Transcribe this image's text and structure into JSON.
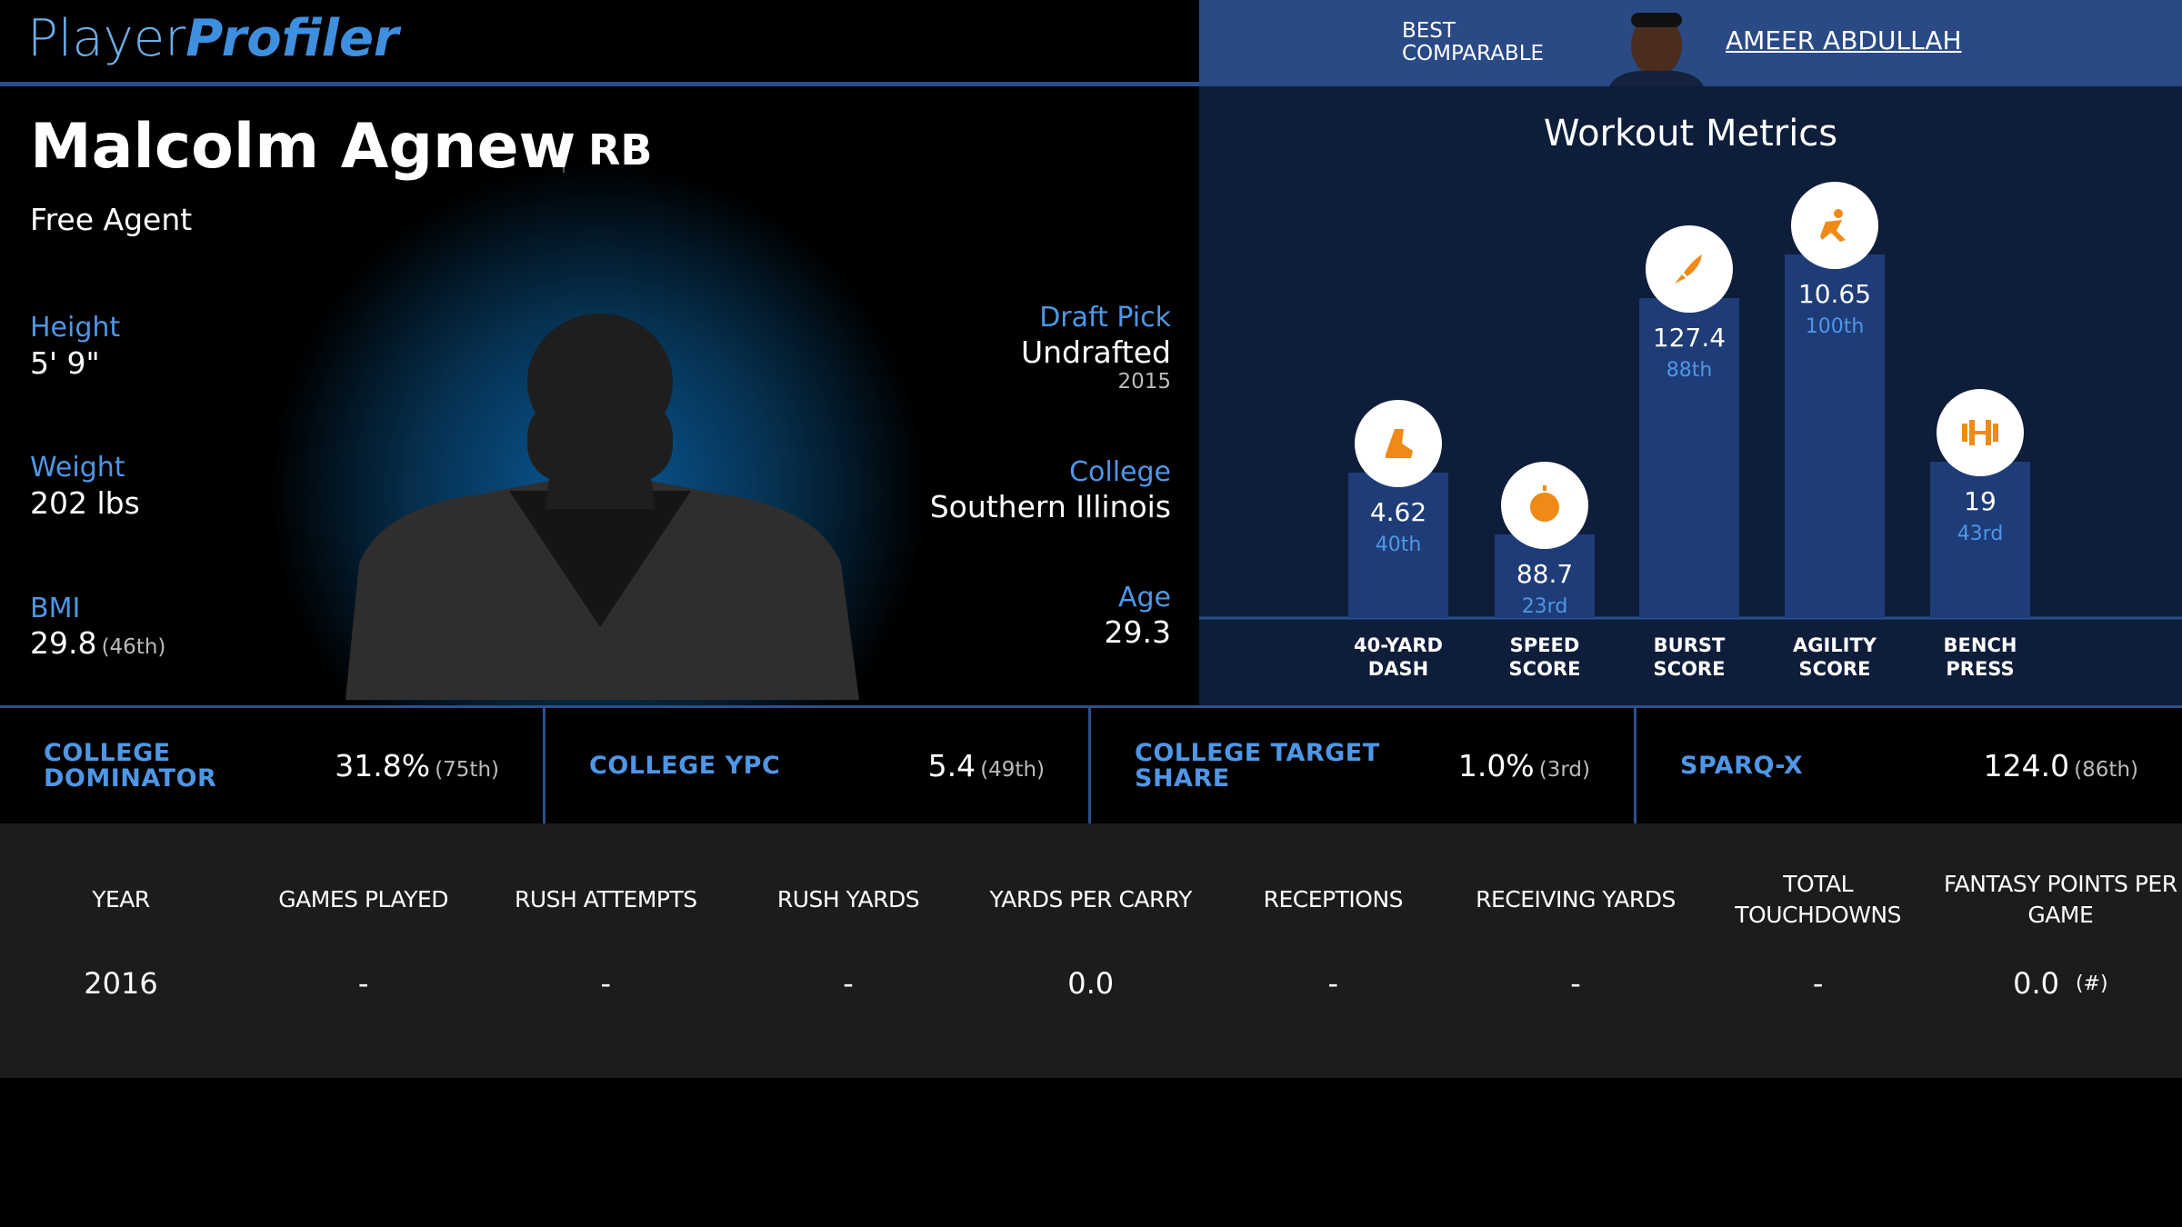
{
  "header": {
    "logo_part1": "Player",
    "logo_part2": "Profiler",
    "best_comparable_lines": [
      "BEST",
      "COMPARABLE"
    ],
    "comparable_name": "AMEER ABDULLAH"
  },
  "player": {
    "name": "Malcolm Agnew",
    "position": "RB",
    "status": "Free Agent"
  },
  "bio_left": [
    {
      "label": "Height",
      "value": "5' 9\""
    },
    {
      "label": "Weight",
      "value": "202 lbs"
    },
    {
      "label": "BMI",
      "value": "29.8",
      "rank": "(46th)"
    }
  ],
  "bio_right": [
    {
      "label": "Draft Pick",
      "value": "Undrafted",
      "sub": "2015"
    },
    {
      "label": "College",
      "value": "Southern Illinois"
    },
    {
      "label": "Age",
      "value": "29.3"
    }
  ],
  "workout": {
    "title": "Workout Metrics",
    "metrics": [
      {
        "name_lines": [
          "40-YARD",
          "DASH"
        ],
        "value": "4.62",
        "percentile": 40,
        "percentile_label": "40th"
      },
      {
        "name_lines": [
          "SPEED",
          "SCORE"
        ],
        "value": "88.7",
        "percentile": 23,
        "percentile_label": "23rd"
      },
      {
        "name_lines": [
          "BURST",
          "SCORE"
        ],
        "value": "127.4",
        "percentile": 88,
        "percentile_label": "88th"
      },
      {
        "name_lines": [
          "AGILITY",
          "SCORE"
        ],
        "value": "10.65",
        "percentile": 100,
        "percentile_label": "100th"
      },
      {
        "name_lines": [
          "BENCH",
          "PRESS"
        ],
        "value": "19",
        "percentile": 43,
        "percentile_label": "43rd"
      }
    ]
  },
  "college_stats": [
    {
      "label_lines": [
        "COLLEGE DOMINATOR"
      ],
      "value": "31.8%",
      "rank": "(75th)"
    },
    {
      "label_lines": [
        "COLLEGE YPC"
      ],
      "value": "5.4",
      "rank": "(49th)"
    },
    {
      "label_lines": [
        "COLLEGE TARGET",
        "SHARE"
      ],
      "value": "1.0%",
      "rank": "(3rd)"
    },
    {
      "label_lines": [
        "SPARQ-X"
      ],
      "value": "124.0",
      "rank": "(86th)"
    }
  ],
  "table": {
    "headers": [
      "YEAR",
      "GAMES PLAYED",
      "RUSH ATTEMPTS",
      "RUSH YARDS",
      "YARDS PER CARRY",
      "RECEPTIONS",
      "RECEIVING YARDS",
      "TOTAL TOUCHDOWNS",
      "FANTASY POINTS PER GAME"
    ],
    "rows": [
      {
        "cells": [
          "2016",
          "-",
          "-",
          "-",
          "0.0",
          "-",
          "-",
          "-",
          "0.0"
        ],
        "fpg_rank": "(#)"
      }
    ]
  }
}
